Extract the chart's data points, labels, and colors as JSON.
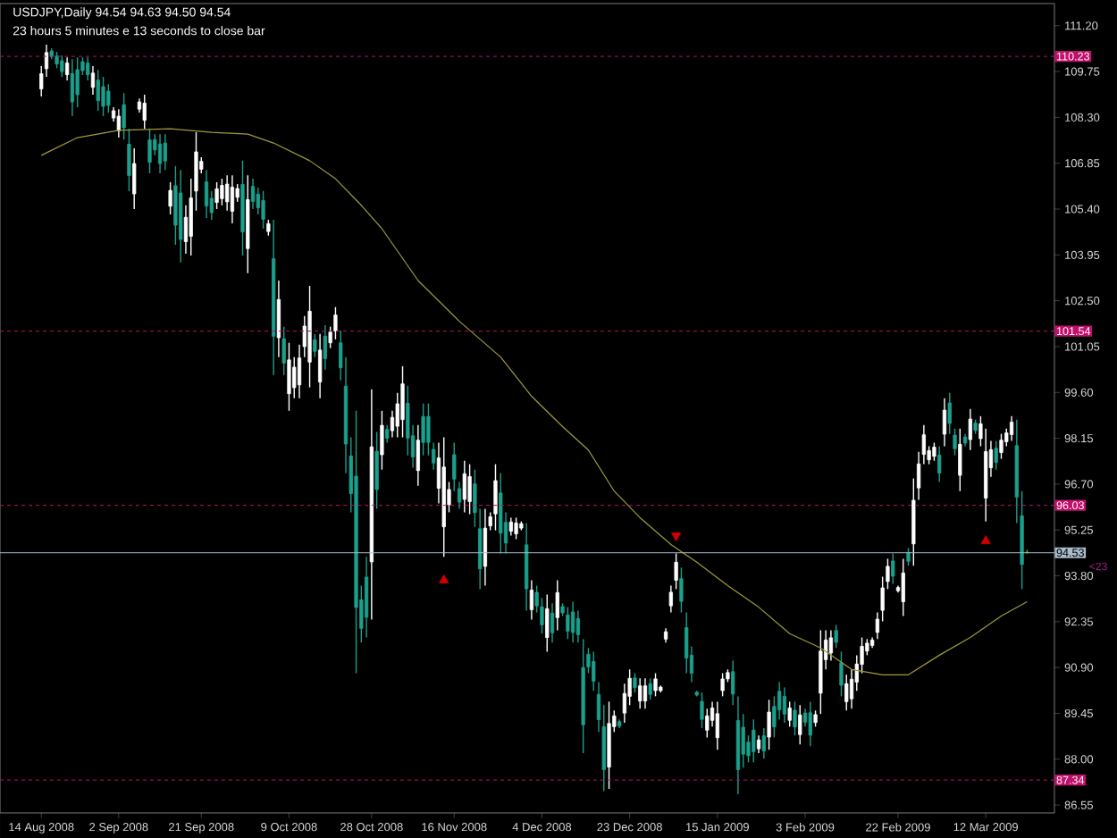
{
  "chart_data": {
    "type": "candlestick",
    "title": "USDJPY,Daily  94.54 94.63 94.50 94.54",
    "subtitle": "23 hours 5 minutes e 13 seconds to close bar",
    "annotations": [
      "<23"
    ],
    "categories": [
      "14 Aug 2008",
      null,
      null,
      null,
      null,
      null,
      null,
      null,
      null,
      null,
      null,
      null,
      null,
      null,
      null,
      "2 Sep 2008",
      null,
      null,
      null,
      null,
      null,
      null,
      null,
      null,
      null,
      null,
      null,
      null,
      null,
      null,
      null,
      "21 Sep 2008",
      null,
      null,
      null,
      null,
      null,
      null,
      null,
      null,
      null,
      null,
      null,
      null,
      null,
      null,
      null,
      null,
      "9 Oct 2008",
      null,
      null,
      null,
      null,
      null,
      null,
      null,
      null,
      null,
      null,
      null,
      null,
      null,
      null,
      null,
      "28 Oct 2008",
      null,
      null,
      null,
      null,
      null,
      null,
      null,
      null,
      null,
      null,
      null,
      null,
      null,
      null,
      null,
      "16 Nov 2008",
      null,
      null,
      null,
      null,
      null,
      null,
      null,
      null,
      null,
      null,
      null,
      null,
      null,
      null,
      null,
      null,
      "4 Dec 2008",
      null,
      null,
      null,
      null,
      null,
      null,
      null,
      null,
      null,
      null,
      null,
      null,
      null,
      null,
      null,
      null,
      "23 Dec 2008",
      null,
      null,
      null,
      null,
      null,
      null,
      null,
      null,
      null,
      null,
      null,
      null,
      null,
      null,
      null,
      null,
      "15 Jan 2009",
      null,
      null,
      null,
      null,
      null,
      null,
      null,
      null,
      null,
      null,
      null,
      null,
      null,
      null,
      null,
      null,
      "3 Feb 2009",
      null,
      null,
      null,
      null,
      null,
      null,
      null,
      null,
      null,
      null,
      null,
      null,
      null,
      null,
      null,
      null,
      null,
      "22 Feb 2009",
      null,
      null,
      null,
      null,
      null,
      null,
      null,
      null,
      null,
      null,
      null,
      null,
      null,
      null,
      null,
      null,
      "12 Mar 2009",
      null,
      null,
      null,
      null,
      null,
      null,
      null,
      null
    ],
    "ylim": [
      86.3,
      111.9
    ],
    "yticks": [
      86.55,
      {
        "value": 88,
        "label": "88.00"
      },
      89.45,
      {
        "value": 90.9,
        "label": "90.90"
      },
      92.35,
      {
        "value": 93.8,
        "label": "93.80"
      },
      95.25,
      {
        "value": 96.7,
        "label": "96.70"
      },
      98.15,
      {
        "value": 99.6,
        "label": "99.60"
      },
      101.05,
      {
        "value": 102.5,
        "label": "102.50"
      },
      103.95,
      {
        "value": 105.4,
        "label": "105.40"
      },
      106.85,
      {
        "value": 108.3,
        "label": "108.30"
      },
      109.75,
      {
        "value": 111.2,
        "label": "111.20"
      }
    ],
    "ref_lines": [
      {
        "axis": "y",
        "value": 110.23,
        "label": "110.23",
        "color": "#c0106c",
        "line_style": "dashed"
      },
      {
        "axis": "y",
        "value": 101.54,
        "label": "101.54",
        "color": "#c0106c",
        "line_style": "dashed"
      },
      {
        "axis": "y",
        "value": 96.03,
        "label": "96.03",
        "color": "#c0106c",
        "line_style": "dashed"
      },
      {
        "axis": "y",
        "value": 94.53,
        "label": "94.53",
        "color": "#a8bccc",
        "line_style": "solid"
      },
      {
        "axis": "y",
        "value": 87.34,
        "label": "87.34",
        "color": "#c0106c",
        "line_style": "dashed"
      }
    ],
    "series": [
      {
        "colors": [
          "#ffffff",
          "#ffffff",
          "#1aa08c",
          "#1aa08c",
          "#1aa08c",
          "#ffffff",
          "#1aa08c",
          "#1aa08c",
          "#1aa08c",
          "#1aa08c",
          "#ffffff",
          "#1aa08c",
          "#1aa08c",
          "#1aa08c",
          "#ffffff",
          "#ffffff",
          "#1aa08c",
          "#1aa08c",
          "#ffffff",
          "#ffffff",
          "#ffffff",
          "#1aa08c",
          "#1aa08c",
          "#1aa08c",
          "#1aa08c",
          "#ffffff",
          "#1aa08c",
          "#1aa08c",
          "#ffffff",
          "#ffffff",
          "#ffffff",
          "#ffffff",
          "#1aa08c",
          "#1aa08c",
          "#ffffff",
          "#ffffff",
          "#ffffff",
          "#ffffff",
          "#ffffff",
          "#1aa08c",
          "#ffffff",
          "#1aa08c",
          "#1aa08c",
          "#1aa08c",
          "#ffffff",
          "#1aa08c",
          "#ffffff",
          "#1aa08c",
          "#ffffff",
          "#ffffff",
          "#ffffff",
          "#ffffff",
          "#ffffff",
          "#1aa08c",
          "#ffffff",
          "#1aa08c",
          "#ffffff",
          "#ffffff",
          "#1aa08c",
          "#1aa08c",
          "#1aa08c",
          "#1aa08c",
          "#1aa08c",
          "#1aa08c",
          "#ffffff",
          "#1aa08c",
          "#ffffff",
          "#1aa08c",
          "#ffffff",
          "#ffffff",
          "#ffffff",
          "#1aa08c",
          "#1aa08c",
          "#ffffff",
          "#1aa08c",
          "#1aa08c",
          "#1aa08c",
          "#ffffff",
          "#ffffff",
          "#ffffff",
          "#1aa08c",
          "#1aa08c",
          "#ffffff",
          "#ffffff",
          "#1aa08c",
          "#1aa08c",
          "#ffffff",
          "#ffffff",
          "#ffffff",
          "#1aa08c",
          "#1aa08c",
          "#ffffff",
          "#ffffff",
          "#ffffff",
          "#1aa08c",
          "#ffffff",
          "#1aa08c",
          "#1aa08c",
          "#ffffff",
          "#1aa08c",
          "#ffffff",
          "#1aa08c",
          "#1aa08c",
          "#1aa08c",
          "#1aa08c",
          "#1aa08c",
          "#1aa08c",
          "#1aa08c",
          "#1aa08c",
          "#1aa08c",
          "#ffffff",
          "#ffffff",
          "#1aa08c",
          "#ffffff",
          "#ffffff",
          "#1aa08c",
          "#ffffff",
          "#ffffff",
          "#1aa08c",
          "#ffffff",
          "#ffffff",
          "#ffffff",
          "#ffffff",
          "#ffffff",
          "#1aa08c",
          "#1aa08c",
          "#1aa08c",
          "#1aa08c",
          "#1aa08c",
          "#ffffff",
          "#ffffff",
          "#ffffff",
          "#ffffff",
          "#ffffff",
          "#1aa08c",
          "#1aa08c",
          "#1aa08c",
          "#1aa08c",
          "#1aa08c",
          "#ffffff",
          "#1aa08c",
          "#ffffff",
          "#1aa08c",
          "#1aa08c",
          "#1aa08c",
          "#ffffff",
          "#1aa08c",
          "#ffffff",
          "#1aa08c",
          "#1aa08c",
          "#ffffff",
          "#ffffff",
          "#ffffff",
          "#ffffff",
          "#1aa08c",
          "#1aa08c",
          "#ffffff",
          "#ffffff",
          "#ffffff",
          "#ffffff",
          "#ffffff",
          "#ffffff",
          "#ffffff",
          "#ffffff",
          "#ffffff",
          "#1aa08c",
          "#ffffff",
          "#ffffff",
          "#1aa08c",
          "#ffffff",
          "#ffffff",
          "#ffffff",
          "#ffffff",
          "#ffffff",
          "#1aa08c",
          "#ffffff",
          "#1aa08c",
          "#1aa08c",
          "#ffffff",
          "#1aa08c",
          "#ffffff",
          "#1aa08c",
          "#ffffff",
          "#ffffff",
          "#ffffff",
          "#1aa08c",
          "#ffffff",
          "#ffffff",
          "#ffffff",
          "#1aa08c",
          "#1aa08c",
          "#20c020"
        ],
        "ohlc": [
          [
            109.2,
            109.92,
            108.96,
            109.68
          ],
          [
            109.84,
            110.6,
            109.58,
            110.35
          ],
          [
            110.4,
            110.48,
            110.14,
            110.22
          ],
          [
            110.24,
            110.37,
            109.86,
            109.99
          ],
          [
            110.09,
            110.26,
            109.58,
            109.75
          ],
          [
            109.65,
            110.2,
            109.47,
            110.02
          ],
          [
            109.69,
            110.14,
            108.34,
            108.79
          ],
          [
            109.81,
            110.2,
            108.62,
            109.02
          ],
          [
            110.06,
            110.2,
            109.64,
            109.78
          ],
          [
            110.02,
            110.2,
            109.47,
            109.65
          ],
          [
            109.25,
            109.92,
            109.02,
            109.7
          ],
          [
            109.48,
            109.8,
            108.51,
            108.83
          ],
          [
            109.27,
            109.58,
            108.34,
            108.65
          ],
          [
            109.13,
            109.35,
            108.45,
            108.68
          ],
          [
            108.28,
            108.62,
            108.17,
            108.51
          ],
          [
            107.88,
            108.56,
            107.66,
            108.34
          ],
          [
            108.7,
            109.07,
            107.6,
            107.97
          ],
          [
            107.45,
            107.94,
            105.97,
            106.46
          ],
          [
            105.88,
            107.32,
            105.4,
            106.84
          ],
          [
            108.56,
            108.9,
            108.45,
            108.79
          ],
          [
            108.21,
            109.02,
            107.94,
            108.75
          ],
          [
            107.59,
            107.94,
            106.53,
            106.88
          ],
          [
            107.6,
            107.77,
            107.1,
            107.27
          ],
          [
            107.46,
            107.77,
            106.53,
            106.84
          ],
          [
            107.49,
            107.77,
            106.64,
            106.92
          ],
          [
            105.49,
            106.25,
            105.23,
            105.99
          ],
          [
            106.14,
            106.76,
            104.27,
            104.89
          ],
          [
            105.91,
            106.64,
            103.71,
            104.44
          ],
          [
            104.37,
            105.52,
            103.99,
            105.14
          ],
          [
            104.54,
            106.36,
            103.93,
            105.75
          ],
          [
            105.97,
            107.83,
            105.35,
            107.21
          ],
          [
            106.66,
            107.04,
            106.53,
            106.91
          ],
          [
            106.26,
            106.64,
            105.12,
            105.5
          ],
          [
            105.74,
            105.97,
            105.06,
            105.29
          ],
          [
            105.61,
            106.25,
            105.4,
            106.04
          ],
          [
            105.73,
            106.36,
            105.52,
            106.15
          ],
          [
            105.63,
            106.47,
            105.35,
            106.19
          ],
          [
            105.33,
            106.47,
            104.95,
            106.09
          ],
          [
            105.77,
            106.19,
            105.63,
            106.05
          ],
          [
            106.18,
            106.93,
            103.93,
            104.68
          ],
          [
            104.15,
            106.47,
            103.37,
            105.7
          ],
          [
            106.12,
            106.36,
            105.4,
            105.64
          ],
          [
            105.87,
            106.08,
            105.23,
            105.44
          ],
          [
            105.67,
            105.97,
            104.78,
            105.08
          ],
          [
            104.69,
            105.06,
            104.56,
            104.94
          ],
          [
            103.83,
            105.06,
            100.15,
            101.38
          ],
          [
            101.33,
            103.14,
            100.72,
            102.54
          ],
          [
            101.3,
            101.68,
            100.15,
            100.53
          ],
          [
            99.56,
            101.17,
            99.02,
            100.63
          ],
          [
            99.75,
            100.72,
            99.42,
            100.4
          ],
          [
            99.84,
            101.11,
            99.42,
            100.69
          ],
          [
            101.05,
            102.02,
            100.72,
            101.7
          ],
          [
            100.56,
            102.97,
            99.76,
            102.17
          ],
          [
            101.27,
            101.45,
            100.72,
            100.9
          ],
          [
            99.93,
            101.45,
            99.42,
            100.94
          ],
          [
            101.38,
            101.73,
            100.32,
            100.67
          ],
          [
            101.17,
            101.68,
            101.0,
            101.51
          ],
          [
            101.54,
            102.3,
            101.28,
            102.05
          ],
          [
            101.17,
            101.56,
            99.98,
            100.38
          ],
          [
            99.8,
            100.72,
            97.05,
            97.97
          ],
          [
            97.59,
            98.18,
            95.81,
            96.4
          ],
          [
            96.95,
            99.02,
            90.72,
            92.8
          ],
          [
            93.04,
            93.49,
            91.69,
            92.14
          ],
          [
            93.76,
            94.4,
            91.85,
            92.49
          ],
          [
            94.24,
            99.7,
            92.42,
            97.88
          ],
          [
            97.74,
            98.35,
            95.92,
            96.53
          ],
          [
            97.63,
            99.02,
            97.16,
            98.56
          ],
          [
            98.43,
            98.57,
            98.01,
            98.15
          ],
          [
            98.39,
            99.02,
            98.18,
            98.81
          ],
          [
            98.53,
            99.59,
            98.18,
            99.24
          ],
          [
            98.74,
            100.43,
            98.18,
            99.87
          ],
          [
            99.26,
            99.81,
            97.61,
            98.16
          ],
          [
            98.23,
            98.57,
            97.22,
            97.56
          ],
          [
            97.13,
            98.57,
            96.65,
            98.09
          ],
          [
            98.84,
            99.25,
            97.61,
            98.02
          ],
          [
            98.84,
            99.25,
            97.61,
            98.02
          ],
          [
            97.8,
            98.01,
            97.16,
            97.37
          ],
          [
            96.57,
            98.01,
            96.09,
            97.53
          ],
          [
            95.35,
            98.18,
            94.4,
            97.24
          ],
          [
            96.05,
            96.77,
            95.81,
            96.53
          ],
          [
            97.63,
            98.01,
            96.48,
            96.86
          ],
          [
            96.56,
            96.77,
            95.92,
            96.13
          ],
          [
            96.22,
            97.44,
            95.81,
            97.03
          ],
          [
            96.15,
            97.33,
            95.75,
            96.94
          ],
          [
            96.71,
            97.16,
            95.35,
            95.8
          ],
          [
            95.29,
            95.92,
            93.38,
            94.02
          ],
          [
            94.1,
            95.92,
            93.49,
            95.31
          ],
          [
            95.38,
            95.81,
            95.24,
            95.67
          ],
          [
            95.76,
            97.33,
            95.24,
            96.81
          ],
          [
            96.42,
            97.05,
            94.51,
            95.15
          ],
          [
            95.49,
            95.81,
            94.51,
            94.84
          ],
          [
            95.21,
            95.64,
            95.07,
            95.5
          ],
          [
            95.13,
            95.64,
            94.96,
            95.47
          ],
          [
            95.31,
            95.52,
            95.24,
            95.45
          ],
          [
            94.78,
            95.47,
            92.7,
            93.39
          ],
          [
            92.73,
            93.66,
            92.42,
            93.35
          ],
          [
            93.28,
            93.49,
            92.64,
            92.85
          ],
          [
            92.82,
            93.1,
            91.97,
            92.25
          ],
          [
            91.85,
            93.21,
            91.4,
            92.76
          ],
          [
            92.62,
            92.93,
            91.69,
            92.0
          ],
          [
            92.48,
            93.66,
            92.08,
            93.27
          ],
          [
            92.83,
            92.93,
            92.53,
            92.63
          ],
          [
            92.56,
            92.81,
            91.8,
            92.05
          ],
          [
            92.66,
            92.98,
            91.69,
            92.01
          ],
          [
            92.45,
            92.7,
            91.69,
            91.94
          ],
          [
            90.9,
            91.8,
            88.19,
            89.09
          ],
          [
            91.32,
            91.52,
            90.72,
            90.92
          ],
          [
            91.09,
            91.4,
            90.16,
            90.47
          ],
          [
            90.05,
            90.44,
            88.86,
            89.25
          ],
          [
            89.03,
            89.71,
            86.99,
            87.67
          ],
          [
            87.75,
            89.82,
            87.06,
            89.13
          ],
          [
            89.03,
            89.54,
            88.86,
            89.37
          ],
          [
            89.19,
            89.26,
            88.98,
            89.05
          ],
          [
            89.46,
            90.39,
            89.15,
            90.08
          ],
          [
            89.99,
            90.84,
            89.71,
            90.56
          ],
          [
            90.57,
            90.72,
            90.11,
            90.26
          ],
          [
            89.84,
            90.56,
            89.6,
            90.32
          ],
          [
            89.84,
            90.56,
            89.6,
            90.32
          ],
          [
            90.39,
            90.56,
            89.88,
            90.05
          ],
          [
            90.17,
            90.72,
            89.99,
            90.54
          ],
          [
            90.17,
            90.33,
            90.11,
            90.28
          ],
          [
            91.8,
            92.14,
            91.69,
            92.03
          ],
          [
            92.85,
            93.49,
            92.64,
            93.28
          ],
          [
            93.66,
            94.51,
            93.38,
            94.23
          ],
          [
            93.71,
            94.06,
            92.64,
            92.99
          ],
          [
            92.16,
            92.64,
            90.72,
            91.2
          ],
          [
            91.29,
            91.57,
            90.44,
            90.72
          ],
          [
            90.12,
            90.16,
            89.99,
            90.03
          ],
          [
            89.83,
            90.11,
            88.98,
            89.26
          ],
          [
            88.92,
            89.6,
            88.69,
            89.37
          ],
          [
            89.23,
            89.82,
            89.03,
            89.62
          ],
          [
            88.68,
            89.82,
            88.3,
            89.44
          ],
          [
            90.17,
            90.72,
            89.99,
            90.54
          ],
          [
            90.54,
            90.84,
            90.44,
            90.74
          ],
          [
            90.77,
            91.12,
            89.71,
            90.06
          ],
          [
            89.22,
            89.99,
            86.89,
            87.67
          ],
          [
            89.01,
            89.43,
            87.73,
            88.16
          ],
          [
            88.54,
            88.75,
            87.9,
            88.11
          ],
          [
            88.92,
            89.26,
            87.9,
            88.24
          ],
          [
            88.33,
            88.75,
            88.19,
            88.61
          ],
          [
            88.74,
            88.98,
            88.02,
            88.26
          ],
          [
            88.7,
            89.88,
            88.3,
            89.49
          ],
          [
            89.67,
            89.99,
            88.69,
            89.02
          ],
          [
            90.15,
            90.44,
            89.26,
            89.56
          ],
          [
            89.99,
            90.27,
            89.15,
            89.43
          ],
          [
            89.23,
            89.82,
            89.03,
            89.62
          ],
          [
            89.55,
            89.82,
            88.75,
            89.02
          ],
          [
            88.78,
            89.71,
            88.47,
            89.4
          ],
          [
            89.46,
            89.6,
            89.03,
            89.17
          ],
          [
            89.47,
            89.82,
            88.41,
            88.76
          ],
          [
            89.16,
            89.54,
            89.03,
            89.41
          ],
          [
            90.09,
            92.08,
            89.43,
            91.42
          ],
          [
            91.15,
            92.08,
            90.84,
            91.77
          ],
          [
            91.36,
            92.08,
            91.12,
            91.84
          ],
          [
            92.07,
            92.25,
            91.52,
            91.7
          ],
          [
            91.05,
            91.4,
            89.99,
            90.34
          ],
          [
            89.82,
            90.67,
            89.54,
            90.39
          ],
          [
            89.91,
            90.84,
            89.6,
            90.53
          ],
          [
            90.44,
            91.29,
            90.16,
            91.01
          ],
          [
            91.0,
            91.85,
            90.72,
            91.57
          ],
          [
            91.42,
            91.8,
            91.29,
            91.67
          ],
          [
            91.6,
            91.85,
            91.52,
            91.77
          ],
          [
            92.01,
            92.64,
            91.8,
            92.43
          ],
          [
            92.71,
            93.77,
            92.36,
            93.42
          ],
          [
            93.62,
            94.34,
            93.38,
            94.1
          ],
          [
            94.27,
            94.51,
            93.55,
            93.79
          ],
          [
            93.33,
            93.49,
            93.27,
            93.43
          ],
          [
            92.98,
            94.34,
            92.53,
            93.89
          ],
          [
            94.54,
            94.68,
            94.12,
            94.26
          ],
          [
            94.81,
            96.88,
            94.12,
            96.19
          ],
          [
            96.58,
            97.72,
            96.2,
            97.34
          ],
          [
            97.64,
            98.57,
            97.33,
            98.26
          ],
          [
            97.47,
            97.9,
            97.33,
            97.76
          ],
          [
            97.58,
            98.01,
            97.44,
            97.87
          ],
          [
            97.62,
            97.9,
            96.77,
            97.05
          ],
          [
            98.28,
            99.42,
            97.9,
            99.04
          ],
          [
            99.27,
            99.59,
            98.29,
            98.62
          ],
          [
            98.25,
            98.46,
            97.61,
            97.82
          ],
          [
            96.98,
            98.46,
            96.48,
            97.96
          ],
          [
            98.19,
            98.29,
            97.9,
            98.0
          ],
          [
            98.11,
            99.08,
            97.78,
            98.76
          ],
          [
            98.63,
            98.74,
            98.29,
            98.4
          ],
          [
            98.14,
            98.85,
            97.9,
            98.61
          ],
          [
            96.26,
            98.46,
            95.52,
            97.73
          ],
          [
            97.22,
            98.07,
            96.93,
            97.79
          ],
          [
            97.84,
            98.07,
            97.16,
            97.39
          ],
          [
            97.7,
            98.29,
            97.5,
            98.09
          ],
          [
            98.04,
            98.46,
            97.9,
            98.32
          ],
          [
            98.27,
            98.85,
            98.07,
            98.66
          ],
          [
            97.92,
            98.74,
            95.47,
            96.29
          ],
          [
            95.7,
            96.48,
            93.38,
            94.16
          ],
          [
            94.54,
            94.63,
            94.5,
            94.54
          ]
        ]
      },
      {
        "type": "line",
        "color": "#a09a3c",
        "values": [
          107.1,
          null,
          null,
          null,
          null,
          null,
          null,
          107.66,
          null,
          null,
          null,
          null,
          null,
          null,
          null,
          107.89,
          null,
          null,
          null,
          null,
          null,
          null,
          null,
          null,
          null,
          107.94,
          null,
          null,
          null,
          null,
          null,
          null,
          null,
          107.83,
          null,
          null,
          null,
          null,
          null,
          null,
          107.77,
          null,
          null,
          null,
          null,
          107.49,
          null,
          null,
          null,
          null,
          null,
          null,
          106.93,
          null,
          null,
          null,
          null,
          106.36,
          null,
          null,
          null,
          null,
          105.52,
          null,
          null,
          null,
          104.78,
          null,
          null,
          null,
          null,
          null,
          null,
          103.14,
          null,
          null,
          null,
          null,
          null,
          null,
          null,
          101.85,
          null,
          null,
          null,
          null,
          null,
          null,
          null,
          100.72,
          null,
          null,
          null,
          null,
          null,
          99.48,
          null,
          null,
          null,
          null,
          null,
          98.52,
          null,
          null,
          null,
          null,
          97.78,
          null,
          null,
          null,
          null,
          96.48,
          null,
          null,
          null,
          null,
          95.64,
          null,
          null,
          null,
          null,
          null,
          94.79,
          null,
          null,
          null,
          null,
          94.23,
          null,
          null,
          null,
          null,
          null,
          93.49,
          null,
          null,
          null,
          null,
          null,
          92.81,
          null,
          null,
          null,
          null,
          null,
          91.97,
          null,
          null,
          null,
          null,
          null,
          91.52,
          null,
          null,
          null,
          null,
          null,
          90.84,
          null,
          null,
          null,
          null,
          null,
          90.67,
          null,
          null,
          null,
          null,
          90.67,
          null,
          null,
          null,
          null,
          null,
          91.29,
          null,
          null,
          null,
          null,
          null,
          91.85,
          null,
          null,
          null,
          null,
          null,
          92.53,
          null,
          null,
          null,
          null,
          92.98
        ]
      },
      {
        "type": "scatter",
        "color": "#d00000",
        "marker": "triangle",
        "values": [
          null,
          null,
          null,
          null,
          null,
          null,
          null,
          null,
          null,
          null,
          null,
          null,
          null,
          null,
          null,
          null,
          null,
          null,
          null,
          null,
          null,
          null,
          null,
          null,
          null,
          null,
          null,
          null,
          null,
          null,
          null,
          null,
          null,
          null,
          null,
          null,
          null,
          null,
          null,
          null,
          null,
          null,
          null,
          null,
          null,
          null,
          null,
          null,
          null,
          null,
          null,
          null,
          null,
          null,
          null,
          null,
          null,
          null,
          null,
          null,
          null,
          null,
          null,
          null,
          null,
          null,
          null,
          null,
          null,
          null,
          null,
          null,
          null,
          null,
          null,
          null,
          null,
          null,
          93.66,
          null,
          null,
          null,
          null,
          null,
          null,
          null,
          null,
          null,
          null,
          null,
          null,
          null,
          null,
          null,
          null,
          null,
          null,
          null,
          null,
          null,
          null,
          null,
          null,
          null,
          null,
          null,
          null,
          null,
          null,
          null,
          null,
          null,
          null,
          null,
          null,
          null,
          null,
          null,
          null,
          null,
          null,
          null,
          null,
          95.07,
          null,
          null,
          null,
          null,
          null,
          null,
          null,
          null,
          null,
          null,
          null,
          null,
          null,
          null,
          null,
          null,
          null,
          null,
          null,
          null,
          null,
          null,
          null,
          null,
          null,
          null,
          null,
          null,
          null,
          null,
          null,
          null,
          null,
          null,
          null,
          null,
          null,
          null,
          null,
          null,
          null,
          null,
          null,
          null,
          null,
          null,
          null,
          null,
          null,
          null,
          null,
          null,
          null,
          null,
          null,
          null,
          null,
          null,
          null,
          94.9,
          null,
          null,
          null,
          null,
          null,
          null,
          null,
          null
        ]
      }
    ]
  }
}
